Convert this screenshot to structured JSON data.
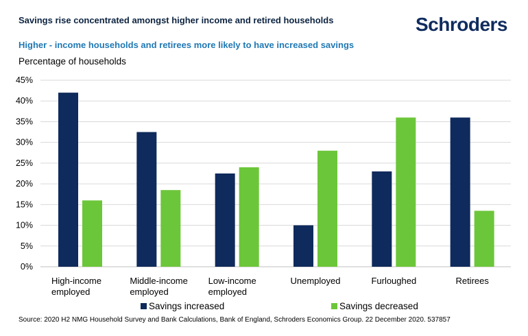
{
  "header": {
    "title": "Savings rise concentrated amongst higher income and retired households",
    "logo_text": "Schroders"
  },
  "chart_data": {
    "type": "bar",
    "subtitle": "Higher - income households and retirees more likely to have increased savings",
    "ylabel": "Percentage of households",
    "categories": [
      [
        "High-income",
        "employed"
      ],
      [
        "Middle-income",
        "employed"
      ],
      [
        "Low-income",
        "employed"
      ],
      [
        "Unemployed"
      ],
      [
        "Furloughed"
      ],
      [
        "Retirees"
      ]
    ],
    "series": [
      {
        "name": "Savings increased",
        "color": "#0f2a5c",
        "values": [
          42,
          32.5,
          22.5,
          10,
          23,
          36
        ]
      },
      {
        "name": "Savings decreased",
        "color": "#6cc63a",
        "values": [
          16,
          18.5,
          24,
          28,
          36,
          13.5
        ]
      }
    ],
    "ylim": [
      0,
      45
    ],
    "yticks": [
      "0%",
      "5%",
      "10%",
      "15%",
      "20%",
      "25%",
      "30%",
      "35%",
      "40%",
      "45%"
    ],
    "grid": true,
    "legend_position": "bottom"
  },
  "footer": {
    "source": "Source: 2020 H2 NMG Household Survey and Bank Calculations, Bank of England, Schroders Economics Group. 22 December 2020. 537857"
  }
}
